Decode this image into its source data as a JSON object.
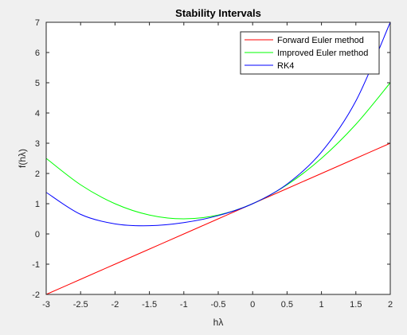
{
  "chart_data": {
    "type": "line",
    "title": "Stability Intervals",
    "xlabel": "hλ",
    "ylabel": "f(hλ)",
    "xlim": [
      -3,
      2
    ],
    "ylim": [
      -2,
      7
    ],
    "xticks": [
      -3,
      -2.5,
      -2,
      -1.5,
      -1,
      -0.5,
      0,
      0.5,
      1,
      1.5,
      2
    ],
    "yticks": [
      -2,
      -1,
      0,
      1,
      2,
      3,
      4,
      5,
      6,
      7
    ],
    "xtick_labels": [
      "-3",
      "-2.5",
      "-2",
      "-1.5",
      "-1",
      "-0.5",
      "0",
      "0.5",
      "1",
      "1.5",
      "2"
    ],
    "ytick_labels": [
      "-2",
      "-1",
      "0",
      "1",
      "2",
      "3",
      "4",
      "5",
      "6",
      "7"
    ],
    "grid": false,
    "legend_position": "top-right",
    "series": [
      {
        "name": "Forward Euler method",
        "color": "#ff0000",
        "x": [
          -3,
          -2.5,
          -2,
          -1.5,
          -1,
          -0.5,
          0,
          0.5,
          1,
          1.5,
          2
        ],
        "y": [
          -2,
          -1.5,
          -1,
          -0.5,
          0,
          0.5,
          1,
          1.5,
          2,
          2.5,
          3
        ]
      },
      {
        "name": "Improved Euler method",
        "color": "#00ff00",
        "x": [
          -3,
          -2.5,
          -2,
          -1.5,
          -1,
          -0.5,
          0,
          0.5,
          1,
          1.5,
          2
        ],
        "y": [
          2.5,
          1.625,
          1,
          0.625,
          0.5,
          0.625,
          1,
          1.625,
          2.5,
          3.625,
          5
        ]
      },
      {
        "name": "RK4",
        "color": "#0000ff",
        "x": [
          -3,
          -2.5,
          -2,
          -1.5,
          -1,
          -0.5,
          0,
          0.5,
          1,
          1.5,
          2
        ],
        "y": [
          1.375,
          0.648,
          0.333,
          0.273,
          0.375,
          0.607,
          1,
          1.648,
          2.708,
          4.398,
          7
        ]
      }
    ]
  }
}
